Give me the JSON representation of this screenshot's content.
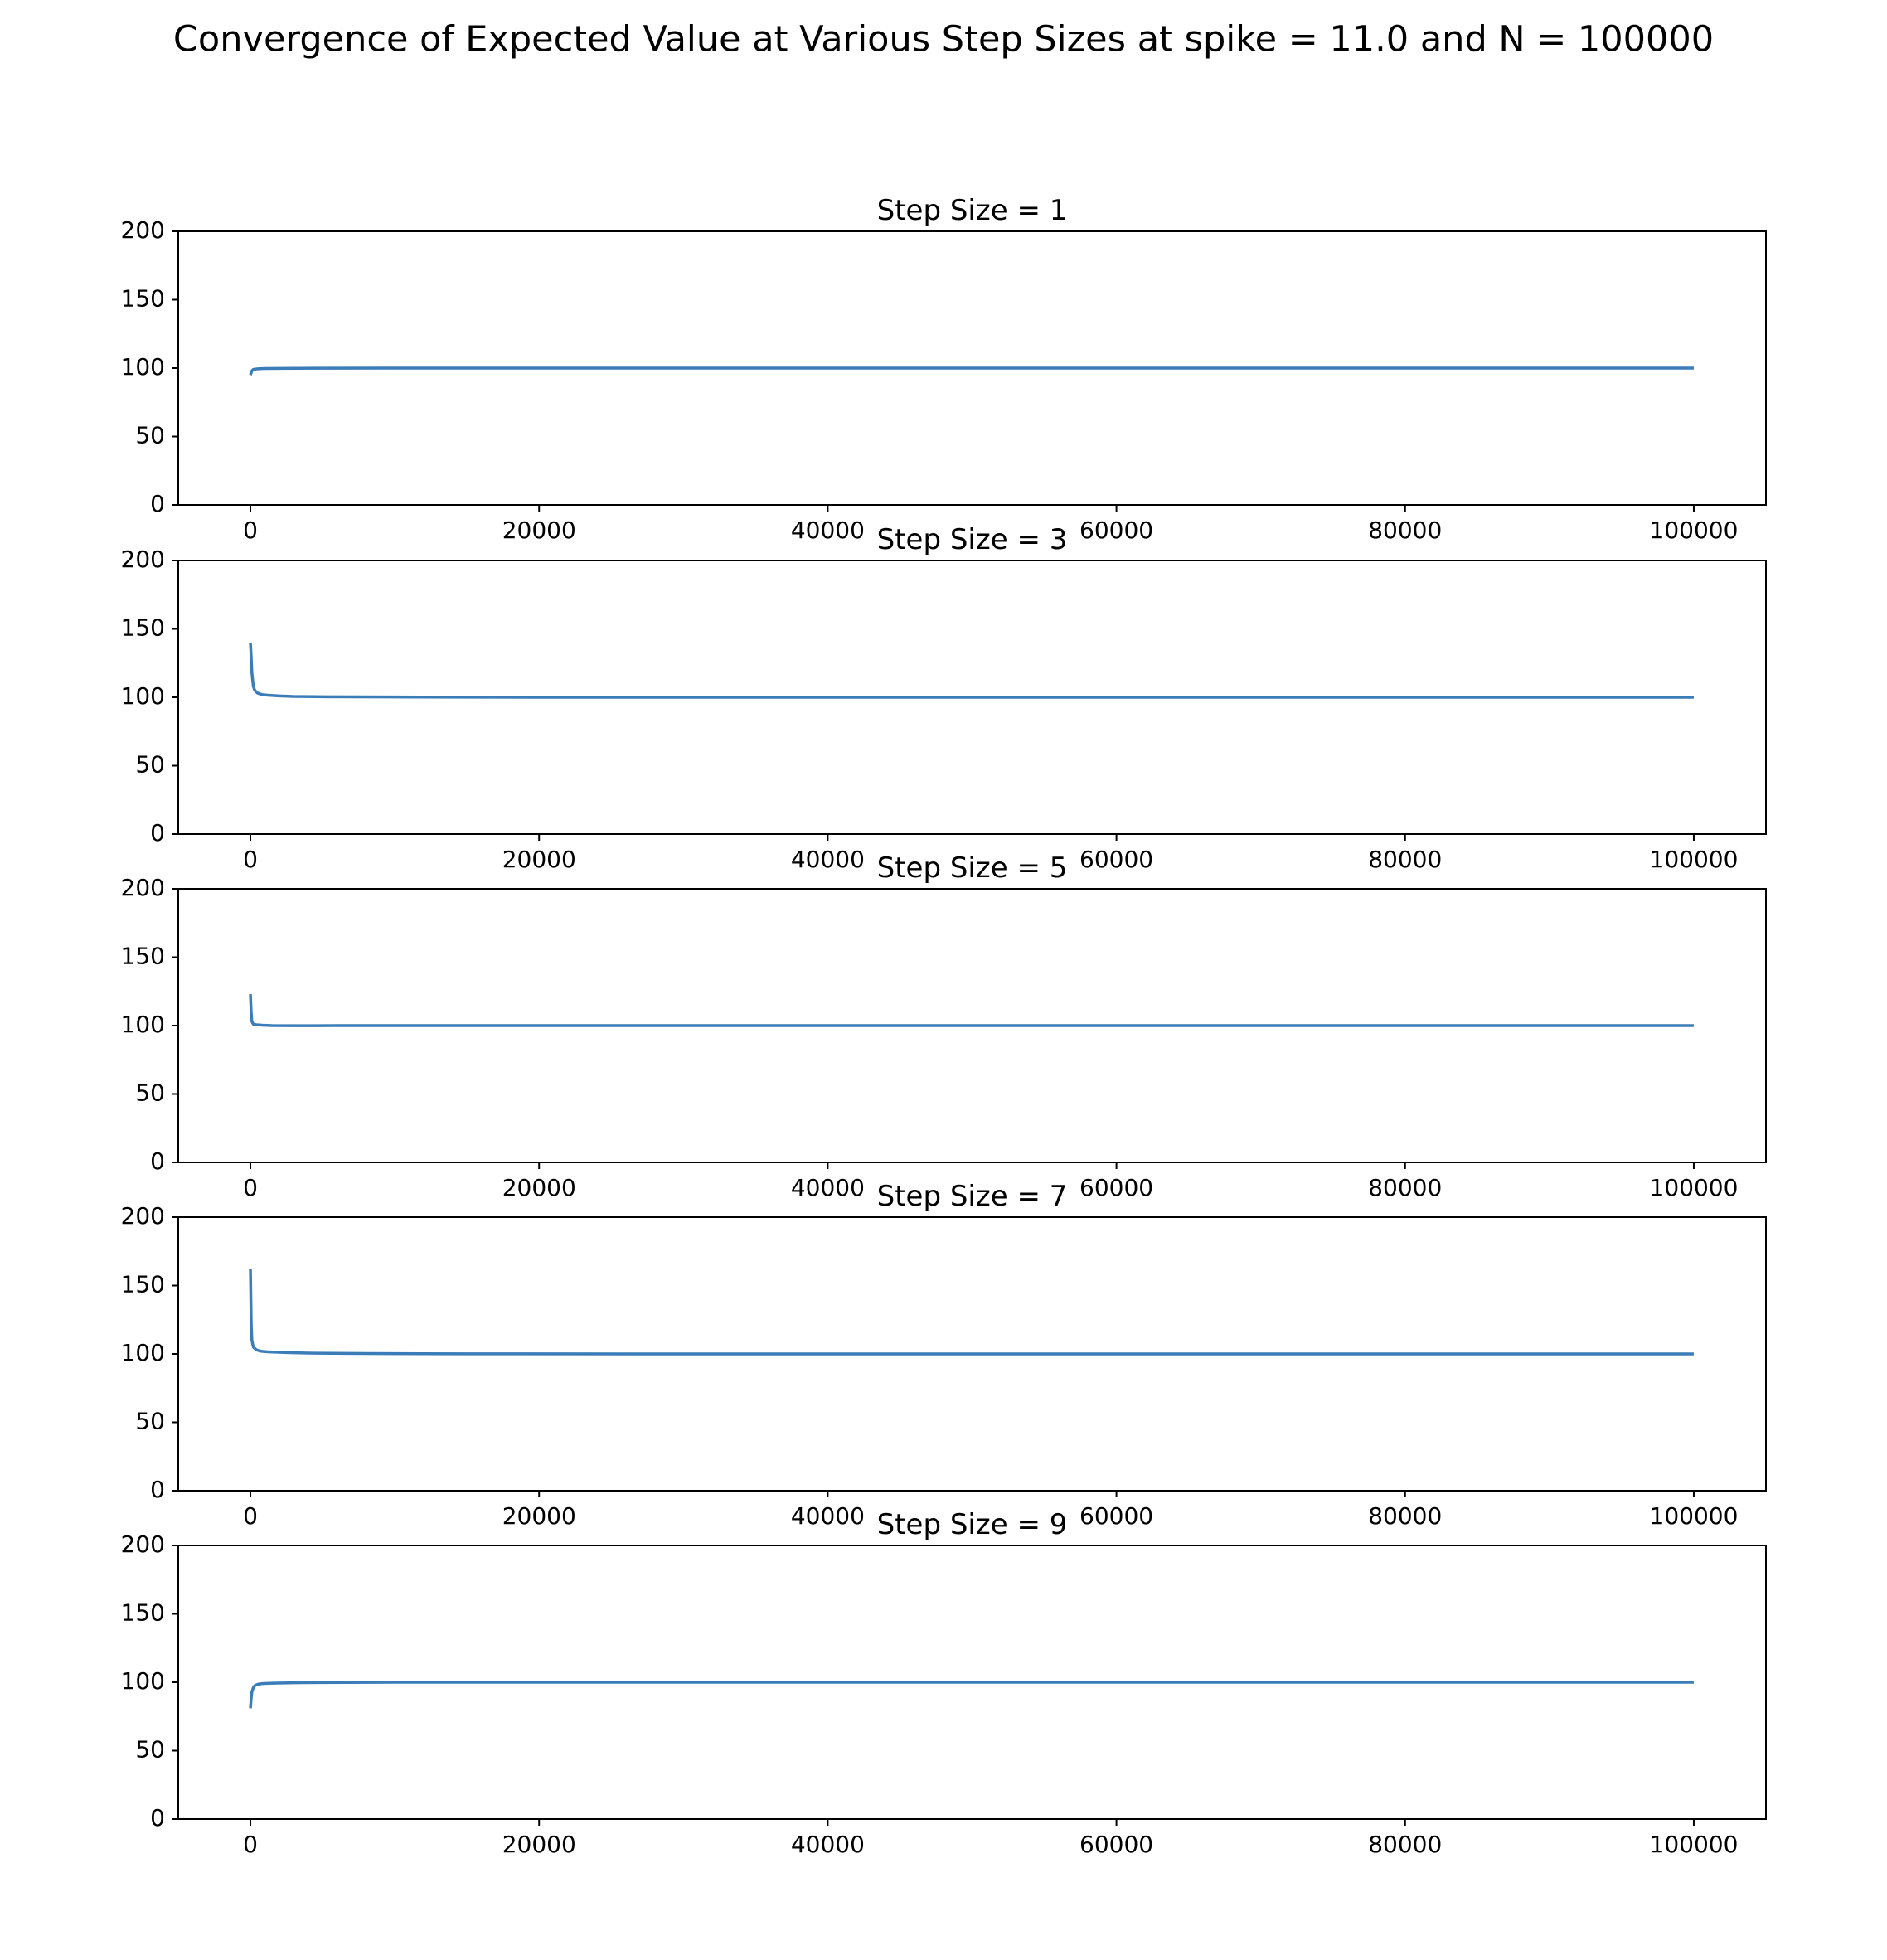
{
  "figure": {
    "title": "Convergence of Expected Value at Various Step Sizes at spike = 11.0 and N = 100000",
    "line_color": "#3b7db8"
  },
  "chart_data": [
    {
      "type": "line",
      "title": "Step Size = 1",
      "xlabel": "",
      "ylabel": "",
      "xlim": [
        -5000,
        105000
      ],
      "ylim": [
        0,
        200
      ],
      "xticks": [
        0,
        20000,
        40000,
        60000,
        80000,
        100000
      ],
      "xtick_labels": [
        "0",
        "20000",
        "40000",
        "60000",
        "80000",
        "100000"
      ],
      "yticks": [
        0,
        50,
        100,
        150,
        200
      ],
      "ytick_labels": [
        "0",
        "50",
        "100",
        "150",
        "200"
      ],
      "grid": false,
      "series": [
        {
          "x": [
            0,
            100,
            200,
            500,
            1000,
            2000,
            5000,
            10000,
            20000,
            40000,
            60000,
            80000,
            100000
          ],
          "y": [
            95,
            98,
            99,
            99.5,
            99.7,
            99.8,
            99.9,
            100,
            100,
            100,
            100,
            100,
            100
          ]
        }
      ]
    },
    {
      "type": "line",
      "title": "Step Size = 3",
      "xlabel": "",
      "ylabel": "",
      "xlim": [
        -5000,
        105000
      ],
      "ylim": [
        0,
        200
      ],
      "xticks": [
        0,
        20000,
        40000,
        60000,
        80000,
        100000
      ],
      "xtick_labels": [
        "0",
        "20000",
        "40000",
        "60000",
        "80000",
        "100000"
      ],
      "yticks": [
        0,
        50,
        100,
        150,
        200
      ],
      "ytick_labels": [
        "0",
        "50",
        "100",
        "150",
        "200"
      ],
      "grid": false,
      "series": [
        {
          "x": [
            0,
            50,
            100,
            200,
            300,
            500,
            800,
            1200,
            2000,
            3000,
            5000,
            10000,
            20000,
            40000,
            60000,
            80000,
            100000
          ],
          "y": [
            140,
            130,
            118,
            108,
            105,
            103,
            102,
            101.5,
            101,
            100.6,
            100.4,
            100.2,
            100,
            100,
            100,
            100,
            100
          ]
        }
      ]
    },
    {
      "type": "line",
      "title": "Step Size = 5",
      "xlabel": "",
      "ylabel": "",
      "xlim": [
        -5000,
        105000
      ],
      "ylim": [
        0,
        200
      ],
      "xticks": [
        0,
        20000,
        40000,
        60000,
        80000,
        100000
      ],
      "xtick_labels": [
        "0",
        "20000",
        "40000",
        "60000",
        "80000",
        "100000"
      ],
      "yticks": [
        0,
        50,
        100,
        150,
        200
      ],
      "ytick_labels": [
        "0",
        "50",
        "100",
        "150",
        "200"
      ],
      "grid": false,
      "series": [
        {
          "x": [
            0,
            50,
            100,
            200,
            400,
            800,
            1500,
            3000,
            6000,
            10000,
            20000,
            40000,
            60000,
            80000,
            100000
          ],
          "y": [
            123,
            110,
            103,
            101,
            100.6,
            100.3,
            100,
            99.9,
            100,
            100,
            100,
            100,
            100,
            100,
            100
          ]
        }
      ]
    },
    {
      "type": "line",
      "title": "Step Size = 7",
      "xlabel": "",
      "ylabel": "",
      "xlim": [
        -5000,
        105000
      ],
      "ylim": [
        0,
        200
      ],
      "xticks": [
        0,
        20000,
        40000,
        60000,
        80000,
        100000
      ],
      "xtick_labels": [
        "0",
        "20000",
        "40000",
        "60000",
        "80000",
        "100000"
      ],
      "yticks": [
        0,
        50,
        100,
        150,
        200
      ],
      "ytick_labels": [
        "0",
        "50",
        "100",
        "150",
        "200"
      ],
      "grid": false,
      "series": [
        {
          "x": [
            0,
            30,
            60,
            100,
            200,
            400,
            700,
            1200,
            2500,
            4000,
            8000,
            15000,
            30000,
            50000,
            70000,
            100000
          ],
          "y": [
            162,
            140,
            120,
            110,
            105,
            103,
            102,
            101.5,
            101,
            100.6,
            100.3,
            100.1,
            100,
            100,
            100,
            100
          ]
        }
      ]
    },
    {
      "type": "line",
      "title": "Step Size = 9",
      "xlabel": "",
      "ylabel": "",
      "xlim": [
        -5000,
        105000
      ],
      "ylim": [
        0,
        200
      ],
      "xticks": [
        0,
        20000,
        40000,
        60000,
        80000,
        100000
      ],
      "xtick_labels": [
        "0",
        "20000",
        "40000",
        "60000",
        "80000",
        "100000"
      ],
      "yticks": [
        0,
        50,
        100,
        150,
        200
      ],
      "ytick_labels": [
        "0",
        "50",
        "100",
        "150",
        "200"
      ],
      "grid": false,
      "series": [
        {
          "x": [
            0,
            50,
            100,
            200,
            300,
            500,
            800,
            1500,
            3000,
            5000,
            10000,
            20000,
            40000,
            60000,
            80000,
            100000
          ],
          "y": [
            81,
            88,
            93,
            96,
            97.5,
            98.5,
            99,
            99.3,
            99.6,
            99.8,
            100,
            100,
            100,
            100,
            100,
            100
          ]
        }
      ]
    }
  ]
}
